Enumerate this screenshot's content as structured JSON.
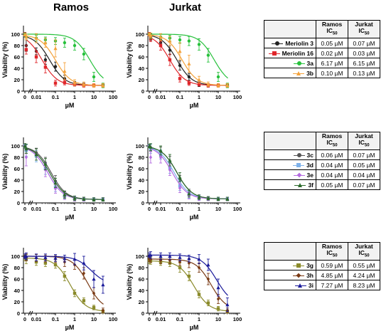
{
  "titles": {
    "ramos": "Ramos",
    "jurkat": "Jurkat"
  },
  "axes": {
    "ylabel": "Viability (%)",
    "xlabel": "µM",
    "yticks": [
      0,
      20,
      40,
      60,
      80,
      100
    ],
    "xticks": [
      {
        "v": 0,
        "l": "0"
      },
      {
        "v": 0.01,
        "l": "0.01"
      },
      {
        "v": 0.1,
        "l": "0.1"
      },
      {
        "v": 1,
        "l": "1"
      },
      {
        "v": 10,
        "l": "10"
      },
      {
        "v": 100,
        "l": "100"
      }
    ],
    "ylim": [
      0,
      110
    ],
    "xscale": "log"
  },
  "chart_data": [
    {
      "type": "scatter",
      "group": 1,
      "cell_line": "Ramos",
      "x": [
        0,
        0.003,
        0.01,
        0.03,
        0.1,
        0.3,
        1,
        3,
        10,
        30
      ],
      "series": [
        {
          "name": "Meriolin 3",
          "color": "#222222",
          "marker": "circle",
          "ic50": 0.05,
          "values": [
            99,
            80,
            70,
            55,
            43,
            22,
            13,
            11,
            10,
            10
          ],
          "errors": [
            4,
            10,
            6,
            8,
            8,
            6,
            4,
            3,
            3,
            3
          ]
        },
        {
          "name": "Meriolin 16",
          "color": "#e0262b",
          "marker": "square",
          "ic50": 0.02,
          "values": [
            100,
            73,
            60,
            42,
            14,
            15,
            12,
            10,
            10,
            10
          ],
          "errors": [
            3,
            8,
            10,
            10,
            5,
            4,
            3,
            3,
            3,
            3
          ]
        },
        {
          "name": "3a",
          "color": "#27c13c",
          "marker": "circle",
          "ic50": 6.17,
          "values": [
            100,
            95,
            93,
            90,
            88,
            85,
            80,
            65,
            25,
            10
          ],
          "errors": [
            2,
            5,
            5,
            5,
            6,
            8,
            8,
            10,
            8,
            4
          ]
        },
        {
          "name": "3b",
          "color": "#f4a23b",
          "marker": "triangle",
          "ic50": 0.1,
          "values": [
            99,
            95,
            93,
            85,
            75,
            35,
            15,
            12,
            10,
            10
          ],
          "errors": [
            2,
            5,
            8,
            8,
            15,
            15,
            5,
            4,
            3,
            3
          ]
        }
      ]
    },
    {
      "type": "scatter",
      "group": 1,
      "cell_line": "Jurkat",
      "x": [
        0,
        0.003,
        0.01,
        0.03,
        0.1,
        0.3,
        1,
        3,
        10,
        30
      ],
      "series": [
        {
          "name": "Meriolin 3",
          "color": "#222222",
          "marker": "circle",
          "ic50": 0.07,
          "values": [
            100,
            95,
            85,
            72,
            45,
            25,
            12,
            10,
            10,
            10
          ],
          "errors": [
            3,
            6,
            6,
            8,
            8,
            6,
            4,
            3,
            3,
            3
          ]
        },
        {
          "name": "Meriolin 16",
          "color": "#e0262b",
          "marker": "square",
          "ic50": 0.03,
          "values": [
            100,
            92,
            80,
            55,
            22,
            14,
            12,
            10,
            10,
            10
          ],
          "errors": [
            3,
            5,
            8,
            10,
            6,
            4,
            3,
            3,
            3,
            3
          ]
        },
        {
          "name": "3a",
          "color": "#27c13c",
          "marker": "circle",
          "ic50": 6.15,
          "values": [
            100,
            97,
            95,
            93,
            90,
            88,
            82,
            63,
            25,
            10
          ],
          "errors": [
            2,
            5,
            5,
            5,
            6,
            8,
            10,
            12,
            8,
            4
          ]
        },
        {
          "name": "3b",
          "color": "#f4a23b",
          "marker": "triangle",
          "ic50": 0.13,
          "values": [
            100,
            98,
            95,
            88,
            70,
            48,
            20,
            12,
            10,
            10
          ],
          "errors": [
            2,
            4,
            6,
            8,
            15,
            15,
            6,
            4,
            3,
            3
          ]
        }
      ]
    },
    {
      "type": "scatter",
      "group": 2,
      "cell_line": "Ramos",
      "x": [
        0,
        0.003,
        0.01,
        0.03,
        0.1,
        0.3,
        1,
        3,
        10,
        30
      ],
      "series": [
        {
          "name": "3c",
          "color": "#555555",
          "marker": "circle",
          "ic50": 0.06,
          "values": [
            100,
            95,
            88,
            70,
            38,
            15,
            8,
            7,
            6,
            6
          ],
          "errors": [
            4,
            8,
            8,
            10,
            10,
            6,
            4,
            3,
            3,
            3
          ]
        },
        {
          "name": "3d",
          "color": "#7fb2ea",
          "marker": "square",
          "ic50": 0.04,
          "values": [
            100,
            92,
            82,
            60,
            28,
            12,
            8,
            6,
            6,
            6
          ],
          "errors": [
            4,
            10,
            10,
            10,
            8,
            6,
            4,
            3,
            3,
            3
          ]
        },
        {
          "name": "3e",
          "color": "#b46be0",
          "marker": "diamond",
          "ic50": 0.04,
          "values": [
            100,
            80,
            85,
            58,
            25,
            12,
            7,
            6,
            6,
            6
          ],
          "errors": [
            4,
            15,
            10,
            12,
            8,
            6,
            4,
            3,
            3,
            3
          ]
        },
        {
          "name": "3f",
          "color": "#2b6a2b",
          "marker": "triangle",
          "ic50": 0.05,
          "values": [
            100,
            95,
            85,
            68,
            35,
            14,
            8,
            7,
            6,
            6
          ],
          "errors": [
            4,
            8,
            10,
            10,
            8,
            6,
            4,
            3,
            3,
            3
          ]
        }
      ]
    },
    {
      "type": "scatter",
      "group": 2,
      "cell_line": "Jurkat",
      "x": [
        0,
        0.003,
        0.01,
        0.03,
        0.1,
        0.3,
        1,
        3,
        10,
        30
      ],
      "series": [
        {
          "name": "3c",
          "color": "#555555",
          "marker": "circle",
          "ic50": 0.07,
          "values": [
            100,
            97,
            90,
            72,
            40,
            18,
            10,
            8,
            7,
            7
          ],
          "errors": [
            3,
            6,
            8,
            10,
            8,
            6,
            4,
            3,
            3,
            3
          ]
        },
        {
          "name": "3d",
          "color": "#7fb2ea",
          "marker": "square",
          "ic50": 0.05,
          "values": [
            100,
            95,
            85,
            62,
            30,
            14,
            9,
            7,
            7,
            7
          ],
          "errors": [
            3,
            8,
            8,
            10,
            8,
            6,
            4,
            3,
            3,
            3
          ]
        },
        {
          "name": "3e",
          "color": "#b46be0",
          "marker": "diamond",
          "ic50": 0.04,
          "values": [
            100,
            80,
            80,
            58,
            26,
            13,
            8,
            7,
            7,
            7
          ],
          "errors": [
            3,
            10,
            10,
            10,
            8,
            6,
            4,
            3,
            3,
            3
          ]
        },
        {
          "name": "3f",
          "color": "#2b6a2b",
          "marker": "triangle",
          "ic50": 0.07,
          "values": [
            100,
            98,
            92,
            75,
            45,
            16,
            10,
            8,
            7,
            7
          ],
          "errors": [
            3,
            6,
            8,
            10,
            8,
            6,
            4,
            3,
            3,
            3
          ]
        }
      ]
    },
    {
      "type": "scatter",
      "group": 3,
      "cell_line": "Ramos",
      "x": [
        0,
        0.003,
        0.01,
        0.03,
        0.1,
        0.3,
        1,
        3,
        10,
        30
      ],
      "series": [
        {
          "name": "3g",
          "color": "#8a8a2a",
          "marker": "square",
          "ic50": 0.59,
          "values": [
            97,
            95,
            90,
            88,
            85,
            65,
            35,
            22,
            10,
            3
          ],
          "errors": [
            5,
            8,
            6,
            6,
            6,
            8,
            6,
            5,
            4,
            3
          ]
        },
        {
          "name": "3h",
          "color": "#7a3a14",
          "marker": "diamond",
          "ic50": 4.85,
          "values": [
            100,
            98,
            97,
            96,
            95,
            90,
            85,
            70,
            35,
            5
          ],
          "errors": [
            4,
            6,
            6,
            6,
            6,
            8,
            8,
            10,
            10,
            4
          ]
        },
        {
          "name": "3i",
          "color": "#1a1a9a",
          "marker": "triangle",
          "ic50": 7.27,
          "values": [
            100,
            100,
            98,
            98,
            97,
            96,
            95,
            88,
            60,
            50
          ],
          "errors": [
            4,
            6,
            6,
            6,
            6,
            6,
            10,
            12,
            15,
            15
          ]
        }
      ]
    },
    {
      "type": "scatter",
      "group": 3,
      "cell_line": "Jurkat",
      "x": [
        0,
        0.003,
        0.01,
        0.03,
        0.1,
        0.3,
        1,
        3,
        10,
        30
      ],
      "series": [
        {
          "name": "3g",
          "color": "#8a8a2a",
          "marker": "square",
          "ic50": 0.55,
          "values": [
            92,
            92,
            90,
            88,
            80,
            65,
            33,
            18,
            8,
            3
          ],
          "errors": [
            5,
            6,
            6,
            6,
            8,
            8,
            6,
            5,
            4,
            3
          ]
        },
        {
          "name": "3h",
          "color": "#7a3a14",
          "marker": "diamond",
          "ic50": 4.24,
          "values": [
            95,
            95,
            93,
            93,
            90,
            88,
            80,
            60,
            25,
            5
          ],
          "errors": [
            4,
            6,
            6,
            6,
            6,
            8,
            8,
            10,
            8,
            4
          ]
        },
        {
          "name": "3i",
          "color": "#1a1a9a",
          "marker": "triangle",
          "ic50": 8.23,
          "values": [
            102,
            102,
            100,
            100,
            98,
            96,
            95,
            85,
            45,
            15
          ],
          "errors": [
            4,
            6,
            6,
            6,
            6,
            6,
            8,
            10,
            15,
            12
          ]
        }
      ]
    }
  ],
  "tables": [
    {
      "header": {
        "ramos": "Ramos",
        "jurkat": "Jurkat",
        "ic": "IC",
        "sub": "50"
      },
      "rows": [
        {
          "name": "Meriolin 3",
          "ramos": "0.05 µM",
          "jurkat": "0.07 µM",
          "color": "#222222",
          "marker": "circle"
        },
        {
          "name": "Meriolin 16",
          "ramos": "0.02 µM",
          "jurkat": "0.03 µM",
          "color": "#e0262b",
          "marker": "square"
        },
        {
          "name": "3a",
          "ramos": "6.17 µM",
          "jurkat": "6.15 µM",
          "color": "#27c13c",
          "marker": "circle"
        },
        {
          "name": "3b",
          "ramos": "0.10 µM",
          "jurkat": "0.13 µM",
          "color": "#f4a23b",
          "marker": "triangle"
        }
      ]
    },
    {
      "header": {
        "ramos": "Ramos",
        "jurkat": "Jurkat",
        "ic": "IC",
        "sub": "50"
      },
      "rows": [
        {
          "name": "3c",
          "ramos": "0.06 µM",
          "jurkat": "0.07 µM",
          "color": "#555555",
          "marker": "circle"
        },
        {
          "name": "3d",
          "ramos": "0.04 µM",
          "jurkat": "0.05 µM",
          "color": "#7fb2ea",
          "marker": "square"
        },
        {
          "name": "3e",
          "ramos": "0.04 µM",
          "jurkat": "0.04 µM",
          "color": "#b46be0",
          "marker": "diamond"
        },
        {
          "name": "3f",
          "ramos": "0.05 µM",
          "jurkat": "0.07 µM",
          "color": "#2b6a2b",
          "marker": "triangle"
        }
      ]
    },
    {
      "header": {
        "ramos": "Ramos",
        "jurkat": "Jurkat",
        "ic": "IC",
        "sub": "50"
      },
      "rows": [
        {
          "name": "3g",
          "ramos": "0.59 µM",
          "jurkat": "0.55 µM",
          "color": "#8a8a2a",
          "marker": "square"
        },
        {
          "name": "3h",
          "ramos": "4.85 µM",
          "jurkat": "4.24 µM",
          "color": "#7a3a14",
          "marker": "diamond"
        },
        {
          "name": "3i",
          "ramos": "7.27 µM",
          "jurkat": "8.23 µM",
          "color": "#1a1a9a",
          "marker": "triangle"
        }
      ]
    }
  ]
}
